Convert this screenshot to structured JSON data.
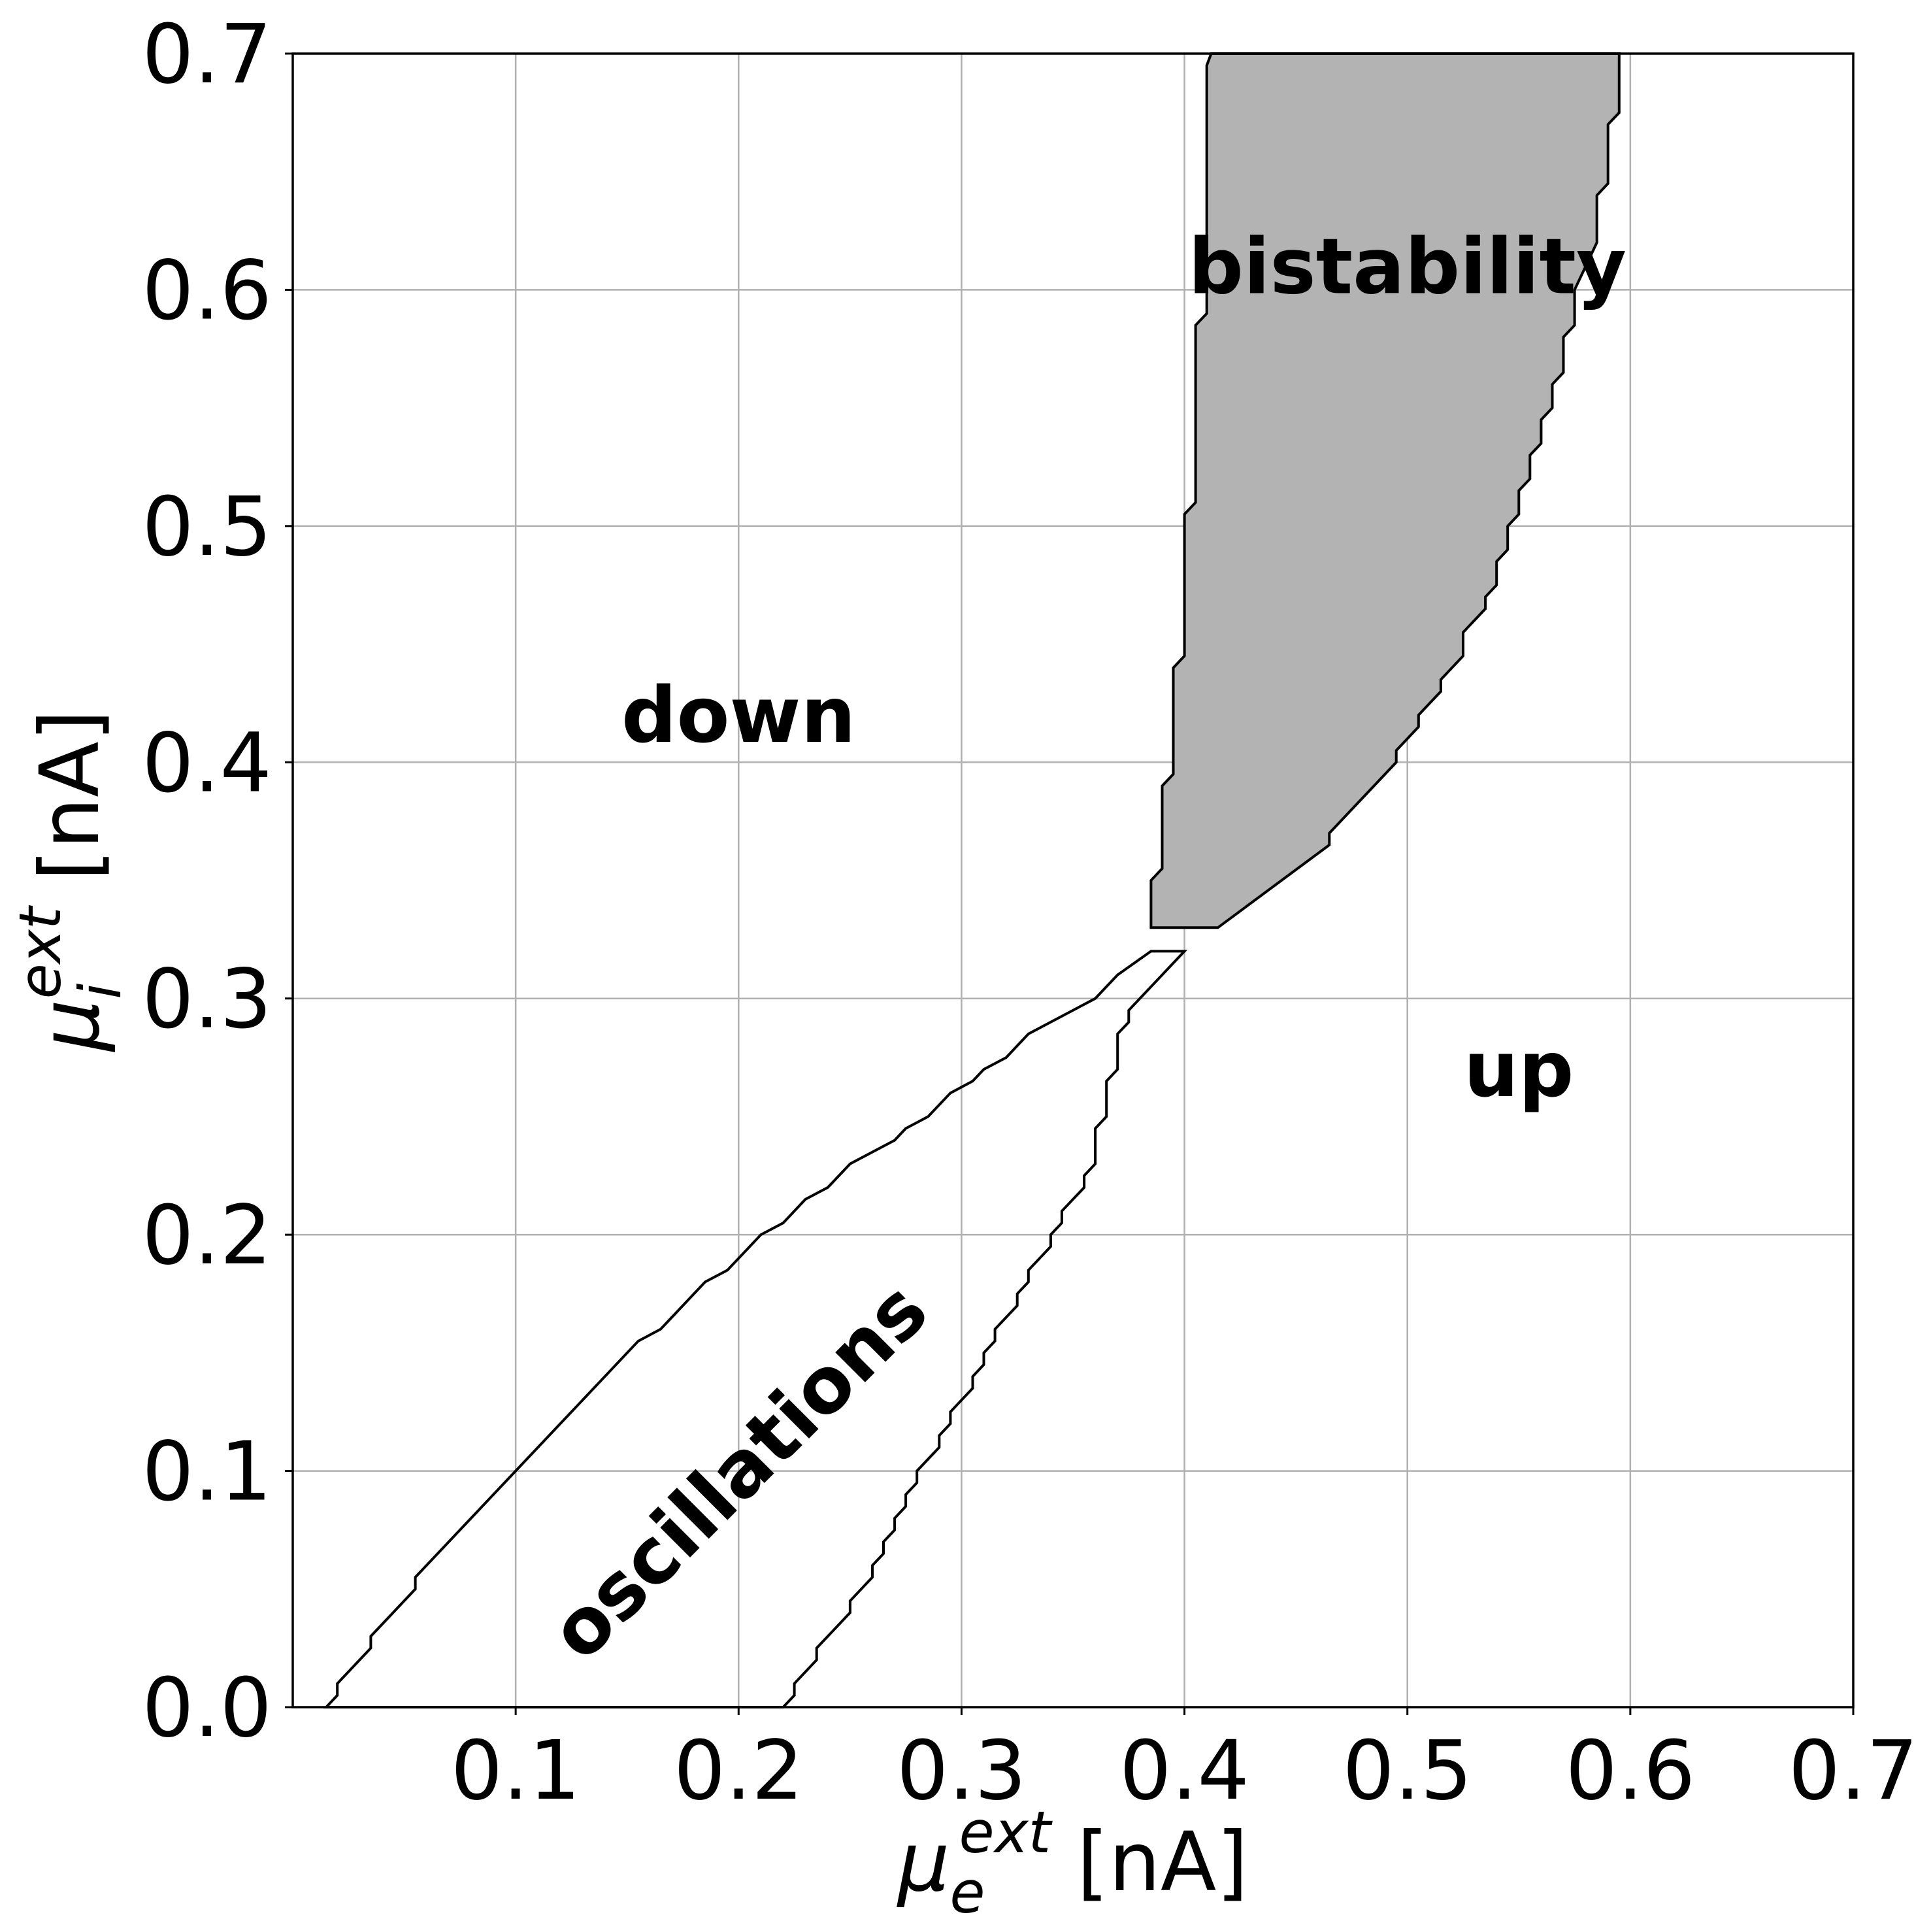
{
  "chart_data": {
    "type": "area",
    "xlabel": {
      "symbol": "μ",
      "sub": "e",
      "sup": "ext",
      "unit": " [nA]"
    },
    "ylabel": {
      "symbol": "μ",
      "sub": "i",
      "sup": "ext",
      "unit": " [nA]"
    },
    "xlim": [
      0,
      0.7
    ],
    "ylim": [
      0,
      0.7
    ],
    "x_ticks": [
      "0.1",
      "0.2",
      "0.3",
      "0.4",
      "0.5",
      "0.6",
      "0.7"
    ],
    "y_ticks": [
      "0.0",
      "0.1",
      "0.2",
      "0.3",
      "0.4",
      "0.5",
      "0.6",
      "0.7"
    ],
    "grid": true,
    "colors": {
      "bistability_fill": "#b3b3b3",
      "boundary": "#000000",
      "grid": "#b0b0b0"
    },
    "regions": [
      {
        "label": "bistability",
        "filled": true,
        "boundary": [
          [
            0.385,
            0.33
          ],
          [
            0.385,
            0.35
          ],
          [
            0.39,
            0.355
          ],
          [
            0.39,
            0.39
          ],
          [
            0.395,
            0.395
          ],
          [
            0.395,
            0.44
          ],
          [
            0.4,
            0.445
          ],
          [
            0.4,
            0.505
          ],
          [
            0.405,
            0.51
          ],
          [
            0.405,
            0.585
          ],
          [
            0.41,
            0.59
          ],
          [
            0.41,
            0.695
          ],
          [
            0.412,
            0.7
          ],
          [
            0.595,
            0.7
          ],
          [
            0.595,
            0.675
          ],
          [
            0.59,
            0.67
          ],
          [
            0.59,
            0.645
          ],
          [
            0.585,
            0.64
          ],
          [
            0.585,
            0.62
          ],
          [
            0.575,
            0.6
          ],
          [
            0.575,
            0.585
          ],
          [
            0.57,
            0.58
          ],
          [
            0.57,
            0.565
          ],
          [
            0.565,
            0.56
          ],
          [
            0.565,
            0.55
          ],
          [
            0.56,
            0.545
          ],
          [
            0.56,
            0.535
          ],
          [
            0.555,
            0.53
          ],
          [
            0.555,
            0.52
          ],
          [
            0.55,
            0.515
          ],
          [
            0.55,
            0.505
          ],
          [
            0.545,
            0.5
          ],
          [
            0.545,
            0.49
          ],
          [
            0.54,
            0.485
          ],
          [
            0.54,
            0.475
          ],
          [
            0.535,
            0.47
          ],
          [
            0.535,
            0.465
          ],
          [
            0.525,
            0.455
          ],
          [
            0.525,
            0.445
          ],
          [
            0.515,
            0.435
          ],
          [
            0.515,
            0.43
          ],
          [
            0.505,
            0.42
          ],
          [
            0.505,
            0.415
          ],
          [
            0.495,
            0.405
          ],
          [
            0.495,
            0.4
          ],
          [
            0.465,
            0.37
          ],
          [
            0.465,
            0.365
          ],
          [
            0.415,
            0.33
          ]
        ]
      },
      {
        "label": "oscillations",
        "filled": false,
        "boundary": [
          [
            0.015,
            0.0
          ],
          [
            0.02,
            0.005
          ],
          [
            0.02,
            0.01
          ],
          [
            0.035,
            0.025
          ],
          [
            0.035,
            0.03
          ],
          [
            0.055,
            0.05
          ],
          [
            0.055,
            0.055
          ],
          [
            0.155,
            0.155
          ],
          [
            0.165,
            0.16
          ],
          [
            0.185,
            0.18
          ],
          [
            0.195,
            0.185
          ],
          [
            0.21,
            0.2
          ],
          [
            0.22,
            0.205
          ],
          [
            0.23,
            0.215
          ],
          [
            0.24,
            0.22
          ],
          [
            0.25,
            0.23
          ],
          [
            0.27,
            0.24
          ],
          [
            0.275,
            0.245
          ],
          [
            0.285,
            0.25
          ],
          [
            0.295,
            0.26
          ],
          [
            0.305,
            0.265
          ],
          [
            0.31,
            0.27
          ],
          [
            0.32,
            0.275
          ],
          [
            0.33,
            0.285
          ],
          [
            0.36,
            0.3
          ],
          [
            0.37,
            0.31
          ],
          [
            0.385,
            0.32
          ],
          [
            0.4,
            0.32
          ],
          [
            0.375,
            0.295
          ],
          [
            0.375,
            0.29
          ],
          [
            0.37,
            0.285
          ],
          [
            0.37,
            0.27
          ],
          [
            0.365,
            0.265
          ],
          [
            0.365,
            0.25
          ],
          [
            0.36,
            0.245
          ],
          [
            0.36,
            0.23
          ],
          [
            0.355,
            0.225
          ],
          [
            0.355,
            0.22
          ],
          [
            0.345,
            0.21
          ],
          [
            0.345,
            0.205
          ],
          [
            0.34,
            0.2
          ],
          [
            0.34,
            0.195
          ],
          [
            0.33,
            0.185
          ],
          [
            0.33,
            0.18
          ],
          [
            0.325,
            0.175
          ],
          [
            0.325,
            0.17
          ],
          [
            0.315,
            0.16
          ],
          [
            0.315,
            0.155
          ],
          [
            0.31,
            0.15
          ],
          [
            0.31,
            0.145
          ],
          [
            0.305,
            0.14
          ],
          [
            0.305,
            0.135
          ],
          [
            0.295,
            0.125
          ],
          [
            0.295,
            0.12
          ],
          [
            0.29,
            0.115
          ],
          [
            0.29,
            0.11
          ],
          [
            0.28,
            0.1
          ],
          [
            0.28,
            0.095
          ],
          [
            0.275,
            0.09
          ],
          [
            0.275,
            0.085
          ],
          [
            0.27,
            0.08
          ],
          [
            0.27,
            0.075
          ],
          [
            0.265,
            0.07
          ],
          [
            0.265,
            0.065
          ],
          [
            0.26,
            0.06
          ],
          [
            0.26,
            0.055
          ],
          [
            0.25,
            0.045
          ],
          [
            0.25,
            0.04
          ],
          [
            0.235,
            0.025
          ],
          [
            0.235,
            0.02
          ],
          [
            0.225,
            0.01
          ],
          [
            0.225,
            0.005
          ],
          [
            0.22,
            0.0
          ]
        ]
      }
    ],
    "annotations": [
      {
        "text": "bistability",
        "x": 0.5,
        "y": 0.61,
        "rotation": 0
      },
      {
        "text": "down",
        "x": 0.2,
        "y": 0.42,
        "rotation": 0
      },
      {
        "text": "up",
        "x": 0.55,
        "y": 0.27,
        "rotation": 0
      },
      {
        "text": "oscillations",
        "x": 0.2,
        "y": 0.1,
        "rotation": -45
      }
    ]
  }
}
